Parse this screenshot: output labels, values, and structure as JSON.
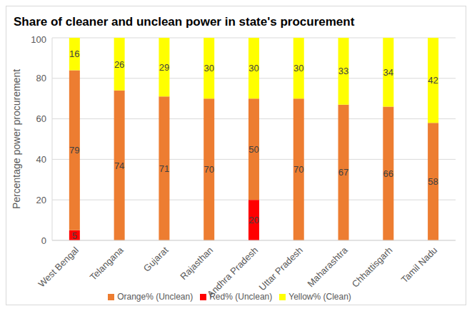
{
  "chart_data": {
    "type": "bar",
    "title": "Share of cleaner and unclean power in state's procurement",
    "y_label": "Percentage power procurement",
    "categories": [
      "West Bengal",
      "Telangana",
      "Gujarat",
      "Rajasthan",
      "Andhra Pradesh",
      "Uttar Pradesh",
      "Maharashtra",
      "Chhattisgarh",
      "Tamil Nadu"
    ],
    "series": [
      {
        "name": "Red% (Unclean)",
        "color": "#ff0000",
        "values": [
          5,
          0,
          0,
          0,
          20,
          0,
          0,
          0,
          0
        ]
      },
      {
        "name": "Orange% (Unclean)",
        "color": "#ed7d31",
        "values": [
          79,
          74,
          71,
          70,
          50,
          70,
          67,
          66,
          58
        ]
      },
      {
        "name": "Yellow% (Clean)",
        "color": "#ffff00",
        "values": [
          16,
          26,
          29,
          30,
          30,
          30,
          33,
          34,
          42
        ]
      }
    ],
    "ylim": [
      0,
      100
    ],
    "yticks": [
      0,
      20,
      40,
      60,
      80,
      100
    ],
    "stacked": true,
    "grid": true,
    "legend": "bottom",
    "data_labels": true
  }
}
